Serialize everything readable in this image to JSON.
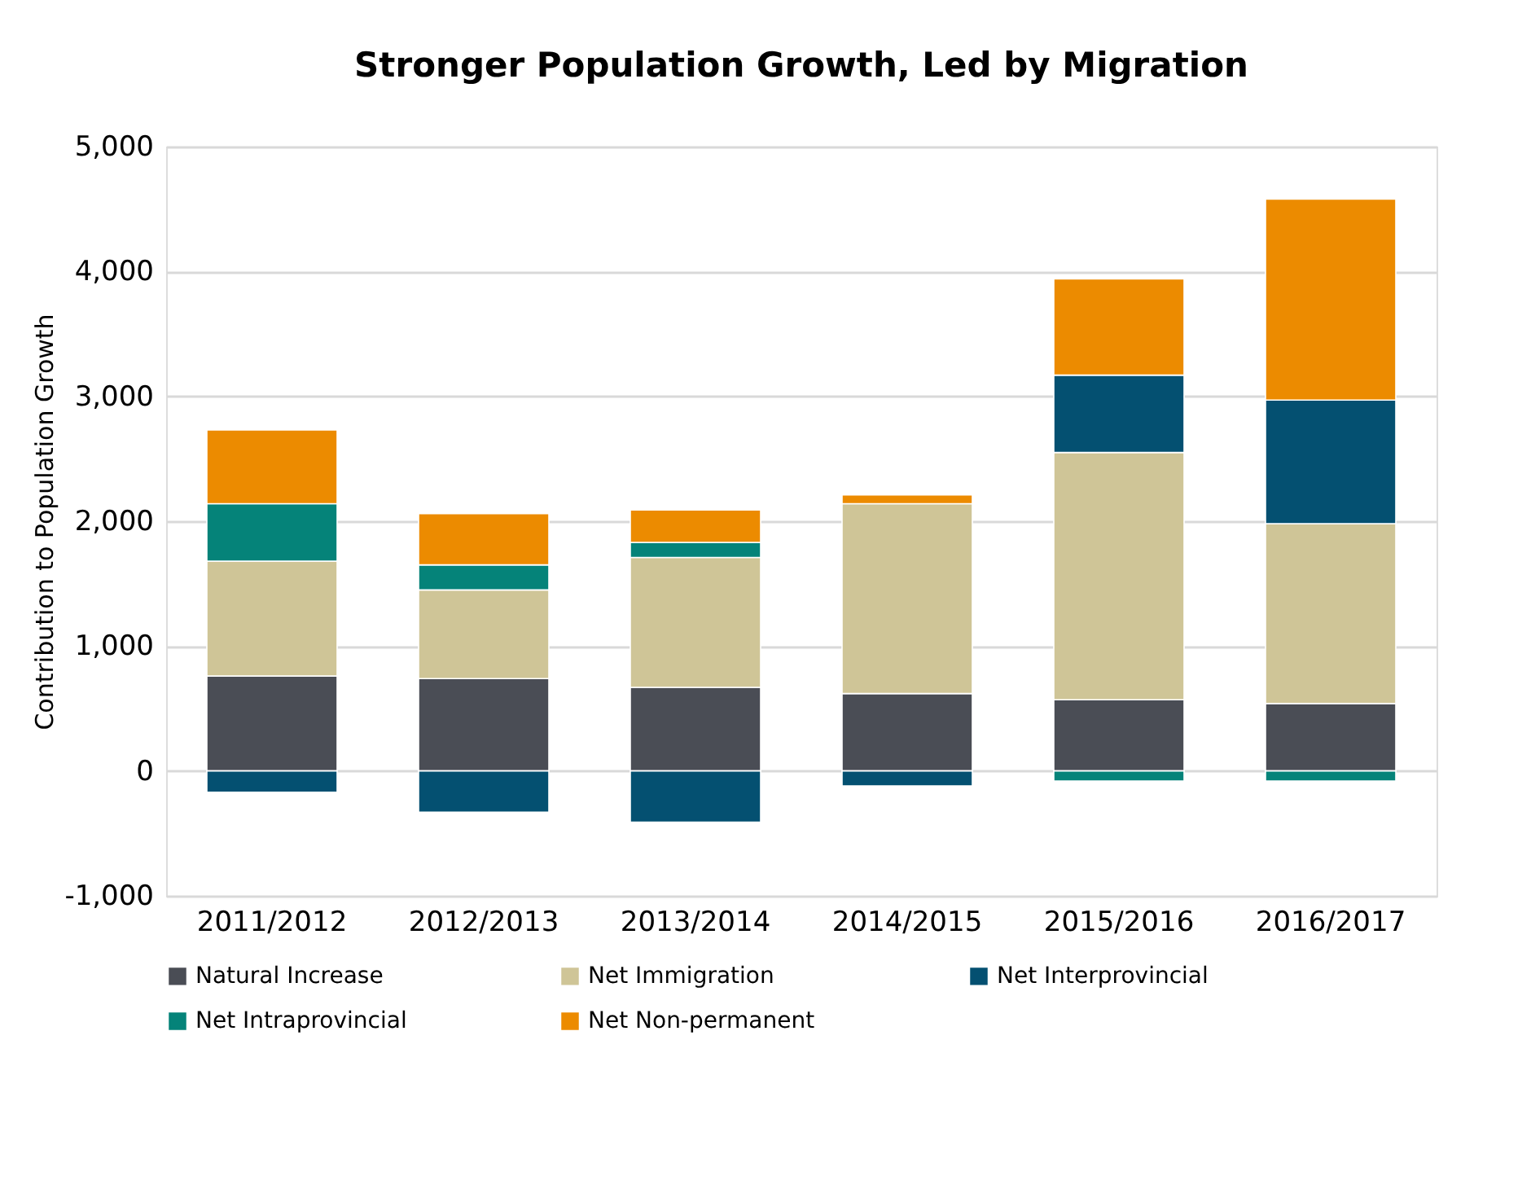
{
  "chart_data": {
    "type": "bar",
    "title": "Stronger Population Growth, Led by Migration",
    "ylabel": "Contribution to Population Growth",
    "categories": [
      "2011/2012",
      "2012/2013",
      "2013/2014",
      "2014/2015",
      "2015/2016",
      "2016/2017"
    ],
    "stacked": true,
    "series": [
      {
        "name": "Natural Increase",
        "color": "#4a4d55",
        "values": [
          760,
          740,
          670,
          620,
          570,
          540
        ]
      },
      {
        "name": "Net Immigration",
        "color": "#cfc597",
        "values": [
          920,
          710,
          1040,
          1520,
          1980,
          1440
        ]
      },
      {
        "name": "Net Interprovincial",
        "color": "#045071",
        "values": [
          -170,
          -330,
          -410,
          -120,
          620,
          990
        ]
      },
      {
        "name": "Net Intraprovincial",
        "color": "#058379",
        "values": [
          460,
          200,
          120,
          null,
          -80,
          -80
        ]
      },
      {
        "name": "Net Non-permanent",
        "color": "#ec8b00",
        "values": [
          590,
          410,
          260,
          70,
          770,
          1610
        ]
      }
    ],
    "ylim": [
      -1000,
      5000
    ],
    "yticks": [
      {
        "value": -1000,
        "label": "-1,000"
      },
      0,
      {
        "value": 1000,
        "label": "1,000"
      },
      {
        "value": 2000,
        "label": "2,000"
      },
      {
        "value": 3000,
        "label": "3,000"
      },
      {
        "value": 4000,
        "label": "4,000"
      },
      {
        "value": 5000,
        "label": "5,000"
      }
    ],
    "grid": "y",
    "legend": "bottom"
  }
}
